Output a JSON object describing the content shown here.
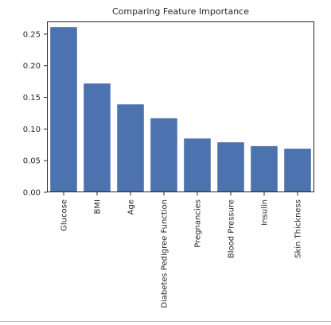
{
  "chart_data": {
    "type": "bar",
    "title": "Comparing Feature Importance",
    "xlabel": "",
    "ylabel": "",
    "categories": [
      "Glucose",
      "BMI",
      "Age",
      "Diabetes Pedigree Function",
      "Pregnancies",
      "Blood Pressure",
      "Insulin",
      "Skin Thickness"
    ],
    "values": [
      0.261,
      0.172,
      0.139,
      0.117,
      0.085,
      0.079,
      0.073,
      0.069
    ],
    "ylim": [
      0,
      0.27
    ],
    "yticks": [
      "0.00",
      "0.05",
      "0.10",
      "0.15",
      "0.20",
      "0.25"
    ],
    "bar_color": "#4c72b0",
    "grid": false
  }
}
